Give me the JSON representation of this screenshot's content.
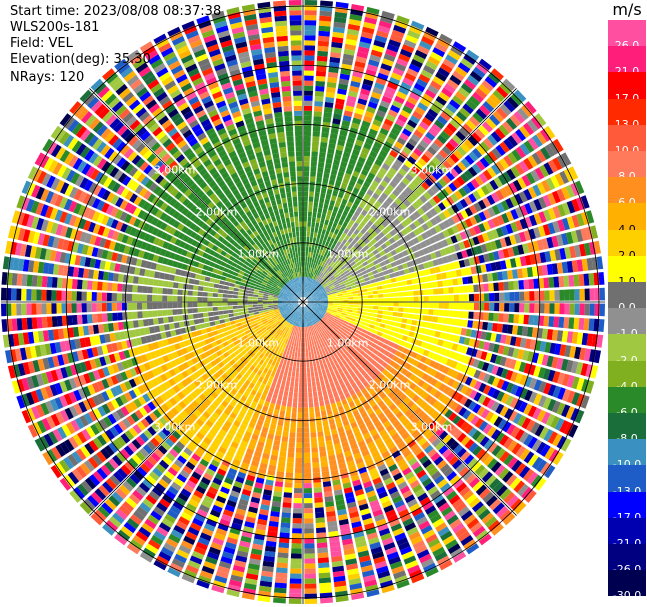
{
  "header": {
    "start_time": "Start time: 2023/08/08 08:37:38",
    "instrument": "WLS200s-181",
    "field": "Field: VEL",
    "elevation": "Elevation(deg): 35.30",
    "nrays": "NRays: 120"
  },
  "colorbar": {
    "unit": "m/s",
    "ticks": [
      "26.0",
      "21.0",
      "17.0",
      "13.0",
      "10.0",
      "8.0",
      "6.0",
      "4.0",
      "2.0",
      "1.0",
      "0.0",
      "-1.0",
      "-2.0",
      "-4.0",
      "-6.0",
      "-8.0",
      "-10.0",
      "-13.0",
      "-17.0",
      "-21.0",
      "-26.0",
      "-30.0"
    ],
    "colors": [
      "#ff4fa0",
      "#ff1f7a",
      "#ff0000",
      "#ff2a00",
      "#ff5a3a",
      "#ff7a5a",
      "#ff9020",
      "#ffb000",
      "#ffd000",
      "#ffff00",
      "#707070",
      "#909090",
      "#a0c840",
      "#80b020",
      "#2a8a2a",
      "#1a6e3a",
      "#3a90c0",
      "#1e5cc8",
      "#0000ff",
      "#0000b0",
      "#000080",
      "#000050"
    ]
  },
  "chart_data": {
    "type": "heatmap",
    "subtype": "radar-ppi",
    "field": "VEL",
    "units": "m/s",
    "n_rays": 120,
    "range_ring_labels": [
      "1.00km",
      "2.00km",
      "3.00km",
      "1.00km",
      "2.00km",
      "3.00km",
      "1.00km",
      "2.00km",
      "3.00km",
      "1.00km",
      "2.00km",
      "3.00km"
    ],
    "range_rings_km": [
      1,
      2,
      3,
      4,
      5
    ],
    "max_range_km": 5,
    "value_range": [
      -30,
      26
    ]
  },
  "ring_labels": [
    {
      "text": "1.00km"
    },
    {
      "text": "2.00km"
    },
    {
      "text": "3.00km"
    },
    {
      "text": "1.00km"
    },
    {
      "text": "2.00km"
    },
    {
      "text": "3.00km"
    },
    {
      "text": "1.00km"
    },
    {
      "text": "2.00km"
    },
    {
      "text": "3.00km"
    },
    {
      "text": "1.00km"
    },
    {
      "text": "2.00km"
    },
    {
      "text": "3.00km"
    }
  ]
}
